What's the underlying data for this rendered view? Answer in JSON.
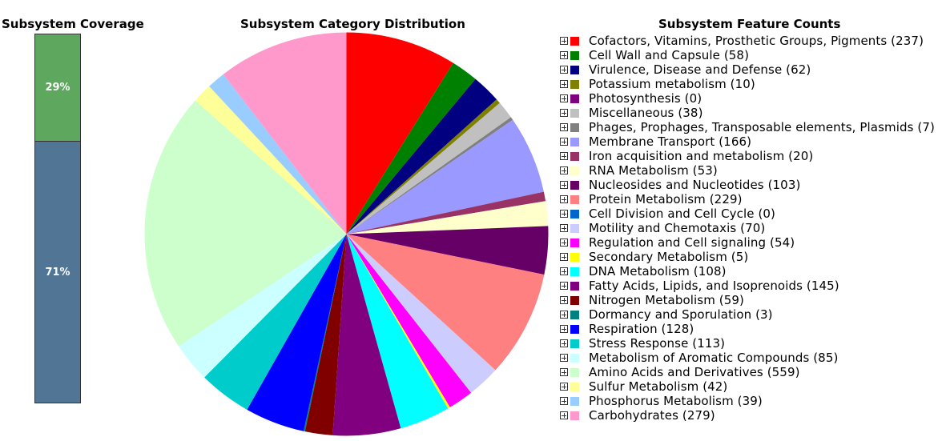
{
  "coverage": {
    "title": "Subsystem Coverage",
    "segments": [
      {
        "label": "29%",
        "value": 29,
        "color": "#5ea75e"
      },
      {
        "label": "71%",
        "value": 71,
        "color": "#507595"
      }
    ]
  },
  "pie": {
    "title": "Subsystem Category Distribution"
  },
  "legend": {
    "title": "Subsystem Feature Counts"
  },
  "chart_data": [
    {
      "type": "bar",
      "title": "Subsystem Coverage",
      "categories": [
        "29%",
        "71%"
      ],
      "values": [
        29,
        71
      ]
    },
    {
      "type": "pie",
      "title": "Subsystem Category Distribution",
      "slices": [
        {
          "name": "Cofactors, Vitamins, Prosthetic Groups, Pigments",
          "value": 237,
          "color": "#ff0000",
          "label": "Cofactors, Vitamins, Prosthetic Groups, Pigments (237)"
        },
        {
          "name": "Cell Wall and Capsule",
          "value": 58,
          "color": "#008000",
          "label": "Cell Wall and Capsule (58)"
        },
        {
          "name": "Virulence, Disease and Defense",
          "value": 62,
          "color": "#000080",
          "label": "Virulence, Disease and Defense (62)"
        },
        {
          "name": "Potassium metabolism",
          "value": 10,
          "color": "#808000",
          "label": "Potassium metabolism (10)"
        },
        {
          "name": "Photosynthesis",
          "value": 0,
          "color": "#800080",
          "label": "Photosynthesis (0)"
        },
        {
          "name": "Miscellaneous",
          "value": 38,
          "color": "#c0c0c0",
          "label": "Miscellaneous (38)"
        },
        {
          "name": "Phages, Prophages, Transposable elements, Plasmids",
          "value": 7,
          "color": "#808080",
          "label": "Phages, Prophages, Transposable elements, Plasmids (7)"
        },
        {
          "name": "Membrane Transport",
          "value": 166,
          "color": "#9999ff",
          "label": "Membrane Transport (166)"
        },
        {
          "name": "Iron acquisition and metabolism",
          "value": 20,
          "color": "#993366",
          "label": "Iron acquisition and metabolism (20)"
        },
        {
          "name": "RNA Metabolism",
          "value": 53,
          "color": "#ffffcc",
          "label": "RNA Metabolism (53)"
        },
        {
          "name": "Nucleosides and Nucleotides",
          "value": 103,
          "color": "#660066",
          "label": "Nucleosides and Nucleotides (103)"
        },
        {
          "name": "Protein Metabolism",
          "value": 229,
          "color": "#ff8080",
          "label": "Protein Metabolism (229)"
        },
        {
          "name": "Cell Division and Cell Cycle",
          "value": 0,
          "color": "#0066cc",
          "label": "Cell Division and Cell Cycle (0)"
        },
        {
          "name": "Motility and Chemotaxis",
          "value": 70,
          "color": "#ccccff",
          "label": "Motility and Chemotaxis (70)"
        },
        {
          "name": "Regulation and Cell signaling",
          "value": 54,
          "color": "#ff00ff",
          "label": "Regulation and Cell signaling (54)"
        },
        {
          "name": "Secondary Metabolism",
          "value": 5,
          "color": "#ffff00",
          "label": "Secondary Metabolism (5)"
        },
        {
          "name": "DNA Metabolism",
          "value": 108,
          "color": "#00ffff",
          "label": "DNA Metabolism (108)"
        },
        {
          "name": "Fatty Acids, Lipids, and Isoprenoids",
          "value": 145,
          "color": "#800080",
          "label": "Fatty Acids, Lipids, and Isoprenoids (145)"
        },
        {
          "name": "Nitrogen Metabolism",
          "value": 59,
          "color": "#800000",
          "label": "Nitrogen Metabolism (59)"
        },
        {
          "name": "Dormancy and Sporulation",
          "value": 3,
          "color": "#008080",
          "label": "Dormancy and Sporulation (3)"
        },
        {
          "name": "Respiration",
          "value": 128,
          "color": "#0000ff",
          "label": "Respiration (128)"
        },
        {
          "name": "Stress Response",
          "value": 113,
          "color": "#00cccc",
          "label": "Stress Response (113)"
        },
        {
          "name": "Metabolism of Aromatic Compounds",
          "value": 85,
          "color": "#ccffff",
          "label": "Metabolism of Aromatic Compounds (85)"
        },
        {
          "name": "Amino Acids and Derivatives",
          "value": 559,
          "color": "#ccffcc",
          "label": "Amino Acids and Derivatives (559)"
        },
        {
          "name": "Sulfur Metabolism",
          "value": 42,
          "color": "#ffff99",
          "label": "Sulfur Metabolism (42)"
        },
        {
          "name": "Phosphorus Metabolism",
          "value": 39,
          "color": "#99ccff",
          "label": "Phosphorus Metabolism (39)"
        },
        {
          "name": "Carbohydrates",
          "value": 279,
          "color": "#ff99cc",
          "label": "Carbohydrates (279)"
        }
      ]
    }
  ]
}
